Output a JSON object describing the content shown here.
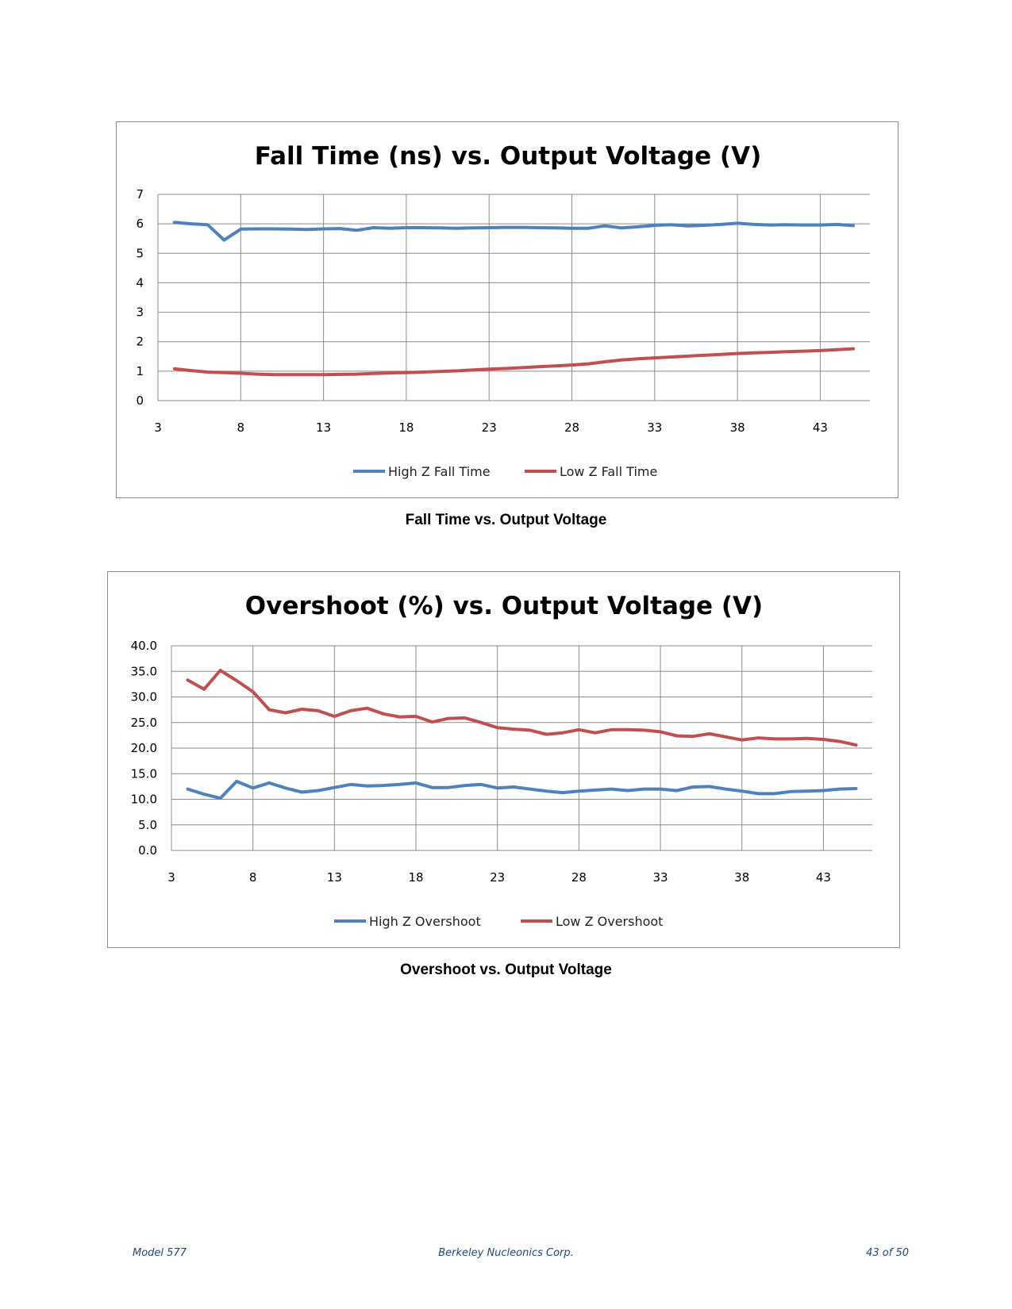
{
  "charts": [
    {
      "title": "Fall Time (ns) vs. Output Voltage (V)",
      "caption": "Fall Time vs. Output Voltage",
      "y_tick_labels": [
        "0",
        "1",
        "2",
        "3",
        "4",
        "5",
        "6",
        "7"
      ],
      "x_tick_labels": [
        "3",
        "8",
        "13",
        "18",
        "23",
        "28",
        "33",
        "38",
        "43"
      ],
      "legend": [
        "High Z Fall Time",
        "Low Z Fall Time"
      ]
    },
    {
      "title": "Overshoot (%) vs. Output Voltage (V)",
      "caption": "Overshoot vs. Output Voltage",
      "y_tick_labels": [
        "0.0",
        "5.0",
        "10.0",
        "15.0",
        "20.0",
        "25.0",
        "30.0",
        "35.0",
        "40.0"
      ],
      "x_tick_labels": [
        "3",
        "8",
        "13",
        "18",
        "23",
        "28",
        "33",
        "38",
        "43"
      ],
      "legend": [
        "High Z Overshoot",
        "Low Z Overshoot"
      ]
    }
  ],
  "footer": {
    "left": "Model 577",
    "center": "Berkeley Nucleonics Corp.",
    "right": "43 of 50"
  },
  "colors": {
    "high_z": "#4f81bd",
    "low_z": "#c0504d",
    "grid": "#8c8c8c"
  },
  "chart_data": [
    {
      "type": "line",
      "title": "Fall Time (ns) vs. Output Voltage (V)",
      "xlabel": "",
      "ylabel": "",
      "xlim": [
        3,
        46
      ],
      "ylim": [
        0,
        7
      ],
      "grid": true,
      "legend_position": "bottom",
      "x": [
        4,
        5,
        6,
        7,
        8,
        9,
        10,
        11,
        12,
        13,
        14,
        15,
        16,
        17,
        18,
        19,
        20,
        21,
        22,
        23,
        24,
        25,
        26,
        27,
        28,
        29,
        30,
        31,
        32,
        33,
        34,
        35,
        36,
        37,
        38,
        39,
        40,
        41,
        42,
        43,
        44,
        45
      ],
      "series": [
        {
          "name": "High Z Fall Time",
          "color": "#4f81bd",
          "values": [
            6.05,
            6.0,
            5.97,
            5.45,
            5.82,
            5.83,
            5.83,
            5.82,
            5.81,
            5.83,
            5.84,
            5.78,
            5.87,
            5.85,
            5.87,
            5.87,
            5.86,
            5.85,
            5.86,
            5.87,
            5.88,
            5.88,
            5.87,
            5.86,
            5.85,
            5.85,
            5.93,
            5.86,
            5.9,
            5.95,
            5.97,
            5.93,
            5.95,
            5.98,
            6.02,
            5.98,
            5.96,
            5.97,
            5.96,
            5.96,
            5.98,
            5.94
          ]
        },
        {
          "name": "Low Z Fall Time",
          "color": "#c0504d",
          "values": [
            1.08,
            1.02,
            0.97,
            0.95,
            0.93,
            0.9,
            0.88,
            0.88,
            0.88,
            0.88,
            0.89,
            0.9,
            0.92,
            0.94,
            0.95,
            0.97,
            0.99,
            1.01,
            1.04,
            1.07,
            1.09,
            1.12,
            1.15,
            1.18,
            1.21,
            1.25,
            1.32,
            1.38,
            1.42,
            1.45,
            1.48,
            1.51,
            1.54,
            1.57,
            1.6,
            1.62,
            1.64,
            1.66,
            1.68,
            1.7,
            1.73,
            1.76
          ]
        }
      ]
    },
    {
      "type": "line",
      "title": "Overshoot (%) vs. Output Voltage (V)",
      "xlabel": "",
      "ylabel": "",
      "xlim": [
        3,
        46
      ],
      "ylim": [
        0,
        40
      ],
      "grid": true,
      "legend_position": "bottom",
      "x": [
        4,
        5,
        6,
        7,
        8,
        9,
        10,
        11,
        12,
        13,
        14,
        15,
        16,
        17,
        18,
        19,
        20,
        21,
        22,
        23,
        24,
        25,
        26,
        27,
        28,
        29,
        30,
        31,
        32,
        33,
        34,
        35,
        36,
        37,
        38,
        39,
        40,
        41,
        42,
        43,
        44,
        45
      ],
      "series": [
        {
          "name": "High Z Overshoot",
          "color": "#4f81bd",
          "values": [
            12.0,
            11.0,
            10.2,
            13.5,
            12.2,
            13.2,
            12.2,
            11.4,
            11.7,
            12.3,
            12.9,
            12.6,
            12.7,
            12.9,
            13.2,
            12.3,
            12.3,
            12.7,
            12.9,
            12.2,
            12.4,
            12.0,
            11.6,
            11.3,
            11.6,
            11.8,
            12.0,
            11.7,
            12.0,
            12.0,
            11.7,
            12.4,
            12.5,
            12.0,
            11.6,
            11.1,
            11.1,
            11.5,
            11.6,
            11.7,
            12.0,
            12.1
          ]
        },
        {
          "name": "Low Z Overshoot",
          "color": "#c0504d",
          "values": [
            33.3,
            31.5,
            35.2,
            33.2,
            31.0,
            27.5,
            26.9,
            27.6,
            27.3,
            26.2,
            27.3,
            27.8,
            26.7,
            26.1,
            26.2,
            25.1,
            25.8,
            25.9,
            25.0,
            24.0,
            23.7,
            23.5,
            22.7,
            23.0,
            23.6,
            23.0,
            23.6,
            23.6,
            23.5,
            23.2,
            22.4,
            22.3,
            22.8,
            22.2,
            21.6,
            22.0,
            21.8,
            21.8,
            21.9,
            21.7,
            21.3,
            20.6
          ]
        }
      ]
    }
  ]
}
